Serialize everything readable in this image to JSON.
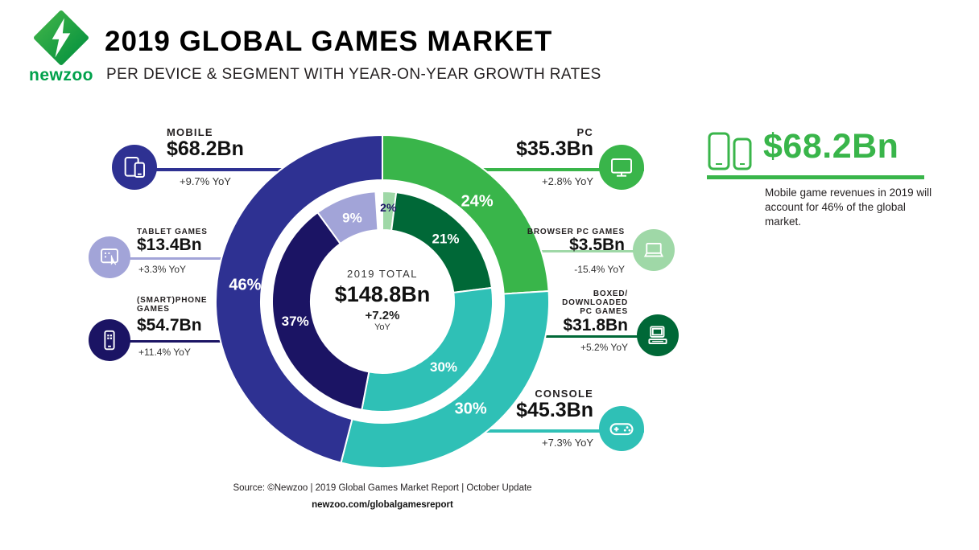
{
  "header": {
    "brand": "newzoo",
    "title": "2019 GLOBAL GAMES MARKET",
    "subtitle": "PER DEVICE & SEGMENT WITH YEAR-ON-YEAR GROWTH RATES"
  },
  "colors": {
    "mobile": "#2E3192",
    "smartphone": "#1B1464",
    "tablet": "#A2A4D8",
    "pc": "#39B54A",
    "browser_pc": "#9FD8A7",
    "boxed_pc": "#006837",
    "console": "#2FC0B6",
    "accent_green": "#39B54A"
  },
  "chart_data": {
    "type": "donut",
    "title": "2019 Global Games Market per Device & Segment",
    "center": {
      "label": "2019 TOTAL",
      "total": "$148.8Bn",
      "growth": "+7.2%",
      "growth_suffix": "YoY"
    },
    "start_angle_deg": 0,
    "clockwise": true,
    "rings": [
      {
        "name": "devices",
        "segments": [
          {
            "label": "PC",
            "value_pct": 24,
            "display": "24%",
            "revenue": "$35.3Bn",
            "yoy": "+2.8%",
            "color": "#39B54A",
            "text_color": "#FFFFFF"
          },
          {
            "label": "Console",
            "value_pct": 30,
            "display": "30%",
            "revenue": "$45.3Bn",
            "yoy": "+7.3%",
            "color": "#2FC0B6",
            "text_color": "#FFFFFF"
          },
          {
            "label": "Mobile",
            "value_pct": 46,
            "display": "46%",
            "revenue": "$68.2Bn",
            "yoy": "+9.7%",
            "color": "#2E3192",
            "text_color": "#FFFFFF"
          }
        ]
      },
      {
        "name": "segments",
        "segments": [
          {
            "label": "Browser PC Games",
            "value_pct": 2,
            "display": "2%",
            "revenue": "$3.5Bn",
            "yoy": "-15.4%",
            "color": "#9FD8A7",
            "text_color": "#1B1464"
          },
          {
            "label": "Boxed/Downloaded PC Games",
            "value_pct": 21,
            "display": "21%",
            "revenue": "$31.8Bn",
            "yoy": "+5.2%",
            "color": "#006837",
            "text_color": "#FFFFFF"
          },
          {
            "label": "Console",
            "value_pct": 30,
            "display": "30%",
            "revenue": "$45.3Bn",
            "yoy": "+7.3%",
            "color": "#2FC0B6",
            "text_color": "#FFFFFF"
          },
          {
            "label": "(Smart)phone Games",
            "value_pct": 37,
            "display": "37%",
            "revenue": "$54.7Bn",
            "yoy": "+11.4%",
            "color": "#1B1464",
            "text_color": "#FFFFFF"
          },
          {
            "label": "Tablet Games",
            "value_pct": 9,
            "display": "9%",
            "revenue": "$13.4Bn",
            "yoy": "+3.3%",
            "color": "#A2A4D8",
            "text_color": "#FFFFFF"
          }
        ]
      }
    ]
  },
  "callouts": {
    "mobile": {
      "name": "MOBILE",
      "value": "$68.2Bn",
      "growth": "+9.7% YoY"
    },
    "tablet": {
      "name": "TABLET GAMES",
      "value": "$13.4Bn",
      "growth": "+3.3% YoY"
    },
    "smartphone": {
      "name": "(SMART)PHONE\nGAMES",
      "value": "$54.7Bn",
      "growth": "+11.4% YoY"
    },
    "pc": {
      "name": "PC",
      "value": "$35.3Bn",
      "growth": "+2.8% YoY"
    },
    "browser_pc": {
      "name": "BROWSER PC GAMES",
      "value": "$3.5Bn",
      "growth": "-15.4% YoY"
    },
    "boxed_pc": {
      "name": "BOXED/\nDOWNLOADED\nPC GAMES",
      "value": "$31.8Bn",
      "growth": "+5.2% YoY"
    },
    "console": {
      "name": "CONSOLE",
      "value": "$45.3Bn",
      "growth": "+7.3% YoY"
    }
  },
  "highlight": {
    "value": "$68.2Bn",
    "text": "Mobile game revenues in 2019 will account for 46% of the global market."
  },
  "footer": {
    "source": "Source: ©Newzoo | 2019 Global Games Market Report | October Update",
    "url": "newzoo.com/globalgamesreport"
  }
}
